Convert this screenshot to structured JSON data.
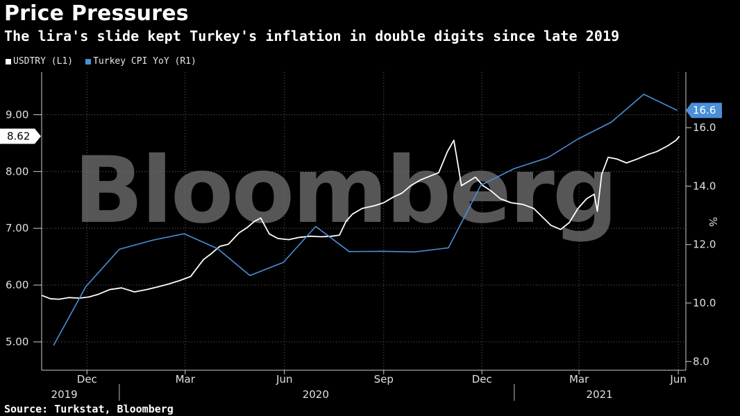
{
  "header": {
    "title": "Price Pressures",
    "subtitle": "The lira's slide kept Turkey's inflation in double digits since late 2019"
  },
  "legend": {
    "items": [
      {
        "label": "USDTRY (L1)",
        "color": "#ffffff"
      },
      {
        "label": "Turkey CPI YoY (R1)",
        "color": "#4a90d9"
      }
    ]
  },
  "watermark": "Bloomberg",
  "source": "Source: Turkstat, Bloomberg",
  "colors": {
    "background": "#000000",
    "usdtry": "#ffffff",
    "cpi": "#4a90d9",
    "grid": "#6a6a6a"
  },
  "chart_data": {
    "type": "line",
    "title": "Price Pressures",
    "subtitle": "The lira's slide kept Turkey's inflation in double digits since late 2019",
    "x_axis": {
      "start": "2019-10-20",
      "end": "2021-06-08",
      "month_labels": [
        "Dec",
        "Mar",
        "Jun",
        "Sep",
        "Dec",
        "Mar",
        "Jun"
      ],
      "month_dates": [
        "2019-12-01",
        "2020-03-01",
        "2020-06-01",
        "2020-09-01",
        "2020-12-01",
        "2021-03-01",
        "2021-06-01"
      ],
      "year_labels": [
        "2019",
        "2020",
        "2021"
      ]
    },
    "y_left": {
      "ticks": [
        "5.00",
        "6.00",
        "7.00",
        "8.00",
        "9.00"
      ],
      "min": 4.5,
      "max": 9.75
    },
    "y_right": {
      "ticks": [
        "8.0",
        "10.0",
        "12.0",
        "14.0",
        "16.0"
      ],
      "min": 7.7,
      "max": 17.9,
      "label": "%"
    },
    "grid": true,
    "legend_position": "top-left",
    "last_values": {
      "usdtry": "8.62",
      "cpi": "16.6"
    },
    "series": [
      {
        "name": "USDTRY (L1)",
        "axis": "left",
        "color": "#ffffff",
        "points": [
          [
            "2019-10-20",
            5.82
          ],
          [
            "2019-10-28",
            5.76
          ],
          [
            "2019-11-05",
            5.75
          ],
          [
            "2019-11-14",
            5.78
          ],
          [
            "2019-11-24",
            5.77
          ],
          [
            "2019-12-03",
            5.79
          ],
          [
            "2019-12-12",
            5.84
          ],
          [
            "2019-12-22",
            5.92
          ],
          [
            "2020-01-02",
            5.95
          ],
          [
            "2020-01-14",
            5.88
          ],
          [
            "2020-01-25",
            5.92
          ],
          [
            "2020-02-05",
            5.97
          ],
          [
            "2020-02-15",
            6.02
          ],
          [
            "2020-02-25",
            6.08
          ],
          [
            "2020-03-06",
            6.15
          ],
          [
            "2020-03-12",
            6.3
          ],
          [
            "2020-03-18",
            6.45
          ],
          [
            "2020-03-25",
            6.55
          ],
          [
            "2020-04-02",
            6.68
          ],
          [
            "2020-04-10",
            6.72
          ],
          [
            "2020-04-20",
            6.92
          ],
          [
            "2020-04-28",
            7.02
          ],
          [
            "2020-05-04",
            7.12
          ],
          [
            "2020-05-10",
            7.18
          ],
          [
            "2020-05-18",
            6.9
          ],
          [
            "2020-05-26",
            6.82
          ],
          [
            "2020-06-05",
            6.8
          ],
          [
            "2020-06-15",
            6.84
          ],
          [
            "2020-06-25",
            6.86
          ],
          [
            "2020-07-05",
            6.85
          ],
          [
            "2020-07-15",
            6.86
          ],
          [
            "2020-07-22",
            6.88
          ],
          [
            "2020-07-28",
            7.12
          ],
          [
            "2020-08-03",
            7.25
          ],
          [
            "2020-08-12",
            7.35
          ],
          [
            "2020-08-24",
            7.4
          ],
          [
            "2020-09-01",
            7.45
          ],
          [
            "2020-09-10",
            7.55
          ],
          [
            "2020-09-18",
            7.62
          ],
          [
            "2020-09-26",
            7.75
          ],
          [
            "2020-10-05",
            7.85
          ],
          [
            "2020-10-14",
            7.92
          ],
          [
            "2020-10-22",
            7.98
          ],
          [
            "2020-10-30",
            8.35
          ],
          [
            "2020-11-05",
            8.55
          ],
          [
            "2020-11-09",
            8.1
          ],
          [
            "2020-11-12",
            7.75
          ],
          [
            "2020-11-18",
            7.82
          ],
          [
            "2020-11-25",
            7.9
          ],
          [
            "2020-12-02",
            7.75
          ],
          [
            "2020-12-10",
            7.65
          ],
          [
            "2020-12-18",
            7.52
          ],
          [
            "2020-12-28",
            7.45
          ],
          [
            "2021-01-08",
            7.42
          ],
          [
            "2021-01-18",
            7.35
          ],
          [
            "2021-01-26",
            7.2
          ],
          [
            "2021-02-03",
            7.05
          ],
          [
            "2021-02-12",
            6.98
          ],
          [
            "2021-02-20",
            7.1
          ],
          [
            "2021-02-28",
            7.35
          ],
          [
            "2021-03-08",
            7.52
          ],
          [
            "2021-03-15",
            7.6
          ],
          [
            "2021-03-18",
            7.3
          ],
          [
            "2021-03-22",
            7.95
          ],
          [
            "2021-03-28",
            8.25
          ],
          [
            "2021-04-05",
            8.22
          ],
          [
            "2021-04-14",
            8.15
          ],
          [
            "2021-04-24",
            8.22
          ],
          [
            "2021-05-04",
            8.3
          ],
          [
            "2021-05-12",
            8.35
          ],
          [
            "2021-05-22",
            8.45
          ],
          [
            "2021-05-30",
            8.55
          ],
          [
            "2021-06-02",
            8.62
          ]
        ]
      },
      {
        "name": "Turkey CPI YoY (R1)",
        "axis": "right",
        "color": "#4a90d9",
        "points": [
          [
            "2019-10-31",
            8.55
          ],
          [
            "2019-11-30",
            10.56
          ],
          [
            "2019-12-31",
            11.84
          ],
          [
            "2020-01-31",
            12.15
          ],
          [
            "2020-02-29",
            12.37
          ],
          [
            "2020-03-31",
            11.86
          ],
          [
            "2020-04-30",
            10.94
          ],
          [
            "2020-05-31",
            11.39
          ],
          [
            "2020-06-30",
            12.62
          ],
          [
            "2020-07-31",
            11.76
          ],
          [
            "2020-08-31",
            11.77
          ],
          [
            "2020-09-30",
            11.75
          ],
          [
            "2020-10-31",
            11.89
          ],
          [
            "2020-11-30",
            14.03
          ],
          [
            "2020-12-31",
            14.6
          ],
          [
            "2021-01-31",
            14.97
          ],
          [
            "2021-02-28",
            15.61
          ],
          [
            "2021-03-31",
            16.19
          ],
          [
            "2021-04-30",
            17.14
          ],
          [
            "2021-05-31",
            16.59
          ]
        ]
      }
    ]
  }
}
